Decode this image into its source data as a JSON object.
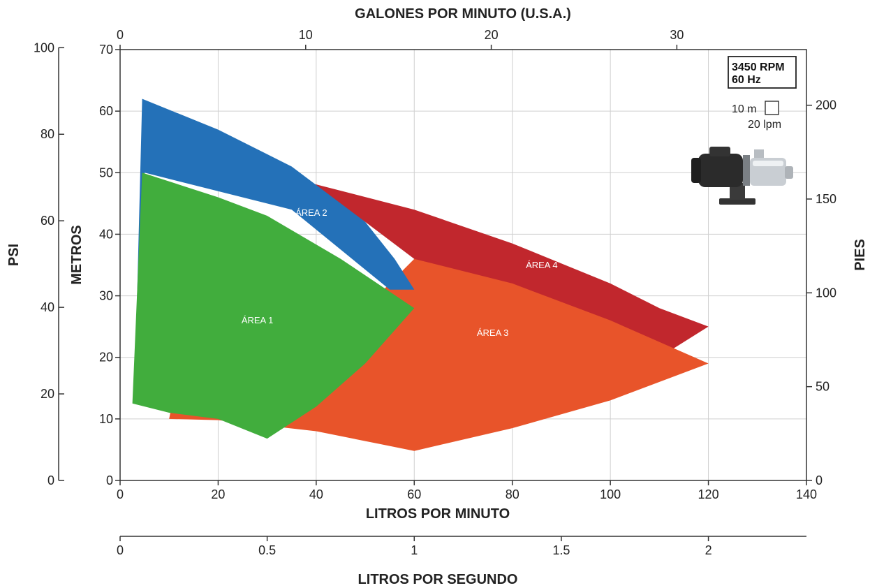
{
  "chart_data": {
    "type": "area",
    "title": "",
    "xlabel": "LITROS POR MINUTO",
    "ylabel": "METROS",
    "xlim": [
      0,
      140
    ],
    "ylim": [
      0,
      70
    ],
    "x_ticks": [
      "0",
      "20",
      "40",
      "60",
      "80",
      "100",
      "120",
      "140"
    ],
    "y_ticks": [
      "0",
      "10",
      "20",
      "30",
      "40",
      "50",
      "60",
      "70"
    ],
    "grid": true,
    "secondary_axes": {
      "top": {
        "label": "GALONES POR MINUTO (U.S.A.)",
        "ticks": [
          "0",
          "10",
          "20",
          "30"
        ]
      },
      "bottom2": {
        "label": "LITROS POR SEGUNDO",
        "ticks": [
          "0",
          "0.5",
          "1",
          "1.5",
          "2"
        ]
      },
      "left2": {
        "label": "PSI",
        "ticks": [
          "0",
          "20",
          "40",
          "60",
          "80",
          "100"
        ]
      },
      "right": {
        "label": "PIES",
        "ticks": [
          "0",
          "50",
          "100",
          "150",
          "200"
        ]
      }
    },
    "series": [
      {
        "name": "ÁREA 4",
        "color": "#c1272d",
        "label_at": [
          86,
          34.5
        ],
        "points": [
          [
            38,
            48.5
          ],
          [
            60,
            44
          ],
          [
            80,
            38.5
          ],
          [
            100,
            32
          ],
          [
            110,
            28
          ],
          [
            120,
            25
          ],
          [
            110,
            20
          ],
          [
            90,
            24
          ],
          [
            60,
            36
          ],
          [
            50,
            42
          ]
        ]
      },
      {
        "name": "ÁREA 3",
        "color": "#e8542a",
        "label_at": [
          76,
          23.5
        ],
        "points": [
          [
            60,
            36
          ],
          [
            80,
            32
          ],
          [
            100,
            26
          ],
          [
            120,
            19
          ],
          [
            100,
            13
          ],
          [
            80,
            8.5
          ],
          [
            60,
            4.8
          ],
          [
            40,
            8
          ],
          [
            20,
            9.8
          ],
          [
            10,
            10
          ],
          [
            11,
            14
          ],
          [
            30,
            20
          ],
          [
            50,
            28
          ]
        ]
      },
      {
        "name": "ÁREA 2",
        "color": "#2471b8",
        "label_at": [
          39,
          43
        ],
        "points": [
          [
            4.5,
            62
          ],
          [
            20,
            57
          ],
          [
            35,
            51
          ],
          [
            50,
            42
          ],
          [
            56,
            36
          ],
          [
            60,
            31
          ],
          [
            55,
            31
          ],
          [
            35,
            44
          ],
          [
            5,
            50
          ],
          [
            3,
            15.5
          ]
        ]
      },
      {
        "name": "ÁREA 1",
        "color": "#41ad3d",
        "label_at": [
          28,
          25.5
        ],
        "points": [
          [
            4.5,
            50
          ],
          [
            20,
            46
          ],
          [
            30,
            43
          ],
          [
            45,
            36
          ],
          [
            60,
            28
          ],
          [
            50,
            19
          ],
          [
            40,
            12
          ],
          [
            30,
            6.8
          ],
          [
            20,
            10
          ],
          [
            10,
            11
          ],
          [
            2.5,
            12.5
          ]
        ]
      }
    ]
  },
  "info": {
    "rpm": "3450 RPM",
    "hz": "60 Hz",
    "scale_meters": "10 m",
    "scale_lpm": "20 lpm"
  },
  "colors": {
    "grid": "#cfcfcf",
    "axis": "#333333",
    "pump_body": "#2b2b2b",
    "pump_steel": "#c9ced3"
  }
}
